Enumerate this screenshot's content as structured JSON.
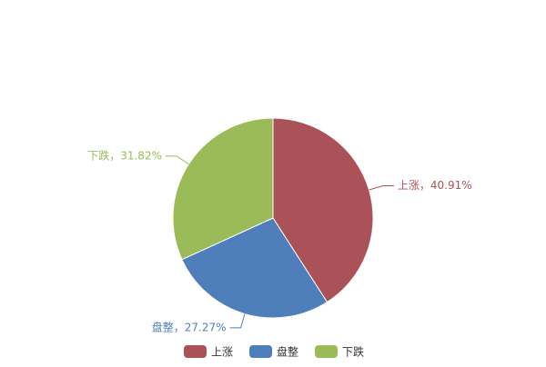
{
  "chart_data": {
    "type": "pie",
    "categories": [
      "上涨",
      "盘整",
      "下跌"
    ],
    "values": [
      40.91,
      27.27,
      31.82
    ],
    "value_labels": [
      "上涨，40.91%",
      "盘整，27.27%",
      "下跌，31.82%"
    ],
    "colors": [
      "#ab5258",
      "#4e7fbb",
      "#9bbb59"
    ],
    "legend": "bottom"
  }
}
